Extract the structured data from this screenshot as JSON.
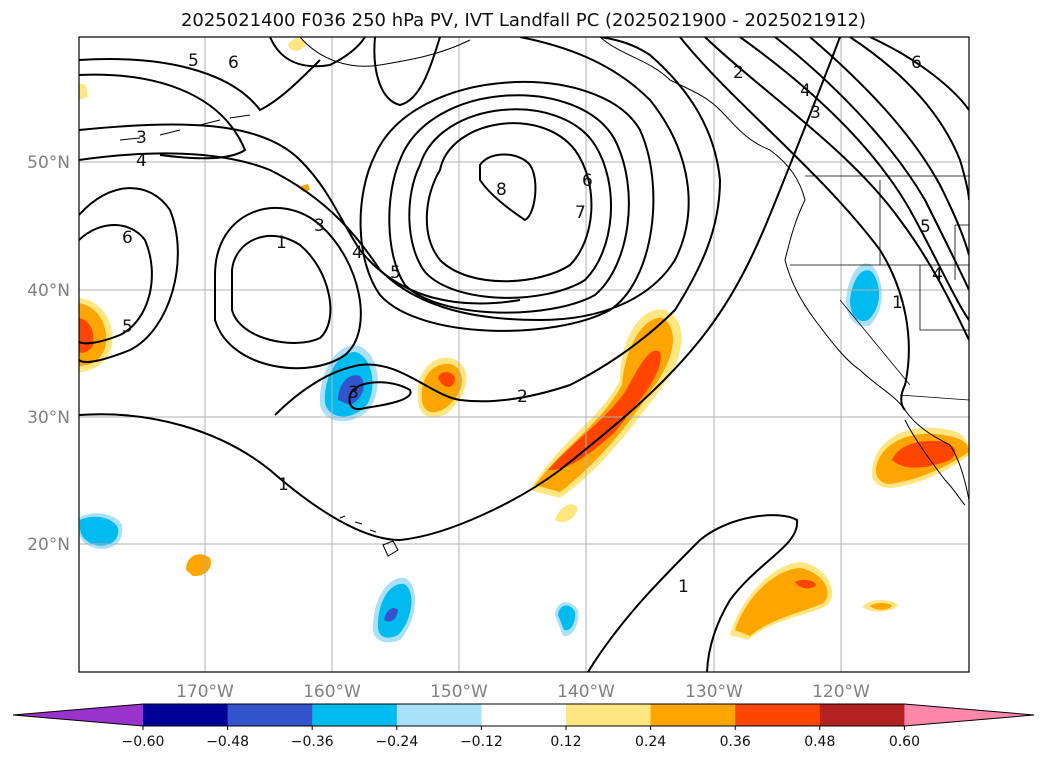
{
  "title": "2025021400 F036 250 hPa PV, IVT Landfall PC (2025021900 - 2025021912)",
  "lon_labels": [
    "170°W",
    "160°W",
    "150°W",
    "140°W",
    "130°W",
    "120°W"
  ],
  "lat_labels": [
    "50°N",
    "40°N",
    "30°N",
    "20°N"
  ],
  "colorbar": {
    "ticks": [
      "−0.60",
      "−0.48",
      "−0.36",
      "−0.24",
      "−0.12",
      "0.12",
      "0.24",
      "0.36",
      "0.48",
      "0.60"
    ],
    "colors": [
      "#9933cc",
      "#000099",
      "#3355cc",
      "#00bbf0",
      "#aae0f8",
      "#ffffff",
      "#ffe680",
      "#ffa500",
      "#ff4500",
      "#b22222",
      "#ff88aa"
    ]
  },
  "contour_labels": [
    "5",
    "6",
    "3",
    "4",
    "6",
    "5",
    "1",
    "3",
    "4",
    "5",
    "8",
    "6",
    "7",
    "2",
    "4",
    "3",
    "6",
    "5",
    "4",
    "1",
    "1",
    "2",
    "1",
    "3"
  ]
}
